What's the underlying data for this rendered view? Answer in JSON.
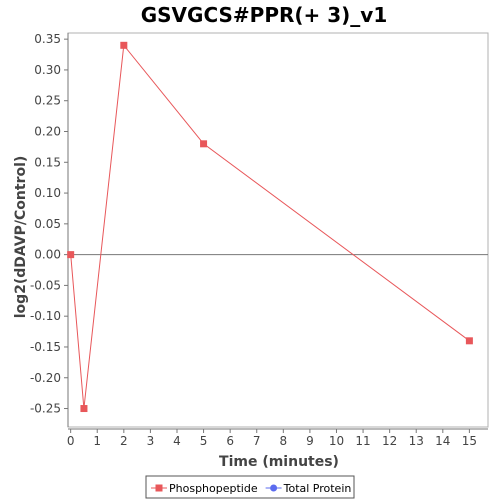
{
  "chart_data": {
    "type": "line",
    "title": "GSVGCS#PPR(+ 3)_v1",
    "xlabel": "Time (minutes)",
    "ylabel": "log2(dDAVP/Control)",
    "xlim": [
      -0.1,
      15.7
    ],
    "ylim": [
      -0.28,
      0.36
    ],
    "xticks": [
      0,
      1,
      2,
      3,
      4,
      5,
      6,
      7,
      8,
      9,
      10,
      11,
      12,
      13,
      14,
      15
    ],
    "yticks": [
      -0.25,
      -0.2,
      -0.15,
      -0.1,
      -0.05,
      0.0,
      0.05,
      0.1,
      0.15,
      0.2,
      0.25,
      0.3,
      0.35
    ],
    "ytick_labels": [
      "-0.25",
      "-0.20",
      "-0.15",
      "-0.10",
      "-0.05",
      "0.00",
      "0.05",
      "0.10",
      "0.15",
      "0.20",
      "0.25",
      "0.30",
      "0.35"
    ],
    "grid": false,
    "zero_line": true,
    "legend_position": "bottom",
    "series": [
      {
        "name": "Phosphopeptide",
        "color": "#e8575a",
        "marker": "square",
        "x": [
          0,
          0.5,
          2,
          5,
          15
        ],
        "values": [
          0.0,
          -0.25,
          0.34,
          0.18,
          -0.14
        ]
      },
      {
        "name": "Total Protein",
        "color": "#5b6bef",
        "marker": "circle",
        "x": [],
        "values": []
      }
    ]
  }
}
